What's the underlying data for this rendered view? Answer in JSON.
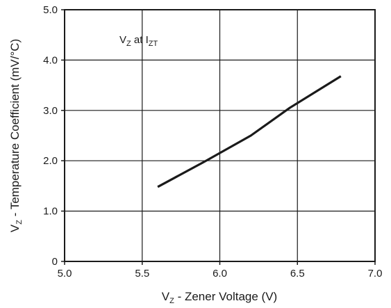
{
  "chart_data": {
    "type": "line",
    "xlabel": {
      "main": "V",
      "sub": "Z",
      "rest": " - Zener Voltage (V)"
    },
    "ylabel": {
      "main": "V",
      "sub": "Z",
      "rest": " - Temperature Coefficient (mV/°C)"
    },
    "annotation": {
      "a": "V",
      "a_sub": "Z",
      "mid": " at I",
      "b_sub": "ZT"
    },
    "xlim": [
      5.0,
      7.0
    ],
    "ylim": [
      0,
      5.0
    ],
    "x_ticks": [
      5.0,
      5.5,
      6.0,
      6.5,
      7.0
    ],
    "x_tick_labels": [
      "5.0",
      "5.5",
      "6.0",
      "6.5",
      "7.0"
    ],
    "y_ticks": [
      0,
      1.0,
      2.0,
      3.0,
      4.0,
      5.0
    ],
    "y_tick_labels": [
      "0",
      "1.0",
      "2.0",
      "3.0",
      "4.0",
      "5.0"
    ],
    "grid": true,
    "series": [
      {
        "color": "#1a1a1a",
        "x": [
          5.6,
          5.9,
          6.2,
          6.45,
          6.78
        ],
        "y": [
          1.48,
          1.98,
          2.5,
          3.05,
          3.68
        ]
      }
    ]
  }
}
